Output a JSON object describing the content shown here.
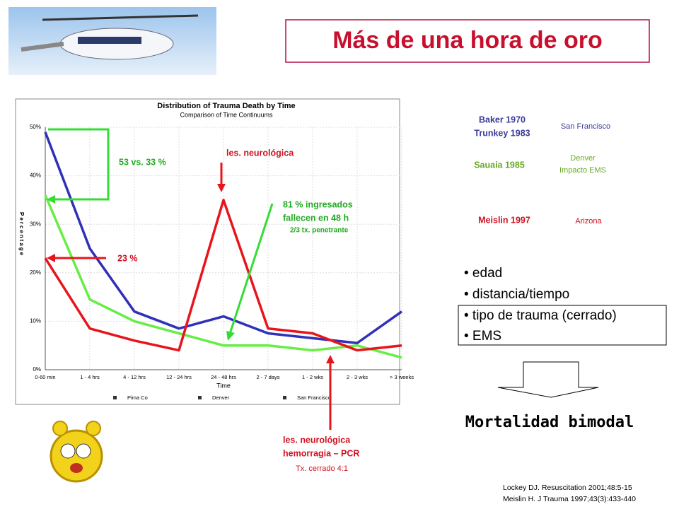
{
  "slide": {
    "title": "Más de una hora de oro",
    "annotations": {
      "a5333": "53 vs. 33 %",
      "a23": "23 %",
      "neuro": "les. neurológica",
      "ingresados1": "81 % ingresados",
      "ingresados2": "fallecen en 48 h",
      "penetrante": "2/3 tx. penetrante",
      "neuro2": "les. neurológica",
      "hemorragia": "hemorragia – PCR",
      "cerrado": "Tx. cerrado  4:1"
    },
    "studies": [
      {
        "lines": [
          "Baker    1970",
          "Trunkey 1983"
        ],
        "place": [
          "San Francisco"
        ]
      },
      {
        "lines": [
          "Sauaia  1985"
        ],
        "place": [
          "Denver",
          "Impacto EMS"
        ]
      },
      {
        "lines": [
          "Meislin  1997"
        ],
        "place": [
          "Arizona"
        ]
      }
    ],
    "bullets": [
      "• edad",
      "• distancia/tiempo",
      "• tipo de trauma  (cerrado)",
      "• EMS"
    ],
    "conclusion": "Mortalidad bimodal",
    "references": [
      "Lockey DJ. Resuscitation 2001;48:5-15",
      "Meislin H. J Trauma  1997;43(3):433-440"
    ]
  },
  "chart_data": {
    "type": "line",
    "title": "Distribution of Trauma Death by Time",
    "subtitle": "Comparison of Time Continuums",
    "y_label": "Percentage",
    "x_label": "Time",
    "categories": [
      "0-60 min",
      "1 - 4 hrs",
      "4 - 12 hrs",
      "12 - 24 hrs",
      "24 - 48 hrs",
      "2 - 7 days",
      "1 - 2 wks",
      "2 - 3 wks",
      "> 3 weeks"
    ],
    "series": [
      {
        "name": "Pima Co",
        "color": "#e8141c",
        "values": [
          23,
          8.5,
          6,
          4,
          35,
          8.5,
          7.5,
          4,
          5
        ]
      },
      {
        "name": "Denver",
        "color": "#3030b8",
        "values": [
          49,
          25,
          12,
          8.5,
          11,
          7.5,
          6.5,
          5.5,
          12
        ]
      },
      {
        "name": "San Francisco",
        "color": "#66ee44",
        "values": [
          36,
          14.5,
          10,
          7.5,
          5,
          5,
          4,
          5,
          2.5
        ]
      }
    ],
    "ylim": [
      0,
      50
    ],
    "yticks": [
      {
        "value": 0,
        "label": "0%"
      },
      {
        "value": 10,
        "label": "10%"
      },
      {
        "value": 20,
        "label": "20%"
      },
      {
        "value": 30,
        "label": "30%"
      },
      {
        "value": 40,
        "label": "40%"
      },
      {
        "value": 50,
        "label": "50%"
      }
    ],
    "grid": true
  }
}
